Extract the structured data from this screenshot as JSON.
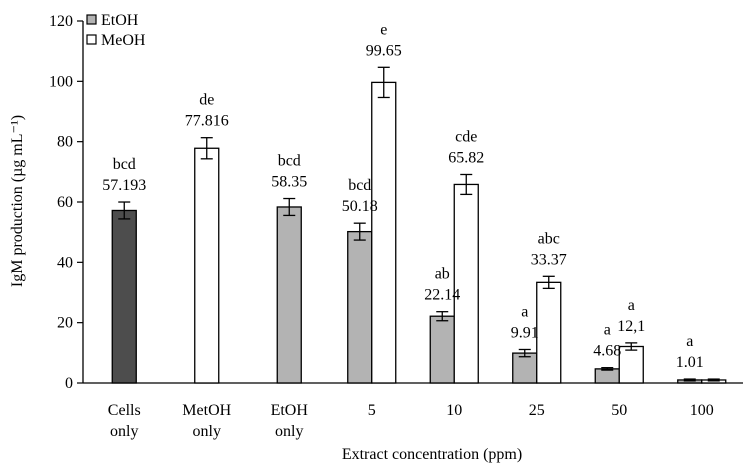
{
  "chart_data": {
    "type": "bar",
    "xlabel": "Extract concentration (ppm)",
    "ylabel": "IgM production (µg mL⁻¹)",
    "ylim": [
      0,
      120
    ],
    "yticks": [
      "0",
      "20",
      "40",
      "60",
      "80",
      "100",
      "120"
    ],
    "legend_position": "top-left",
    "legend": [
      {
        "name": "EtOH",
        "color": "#b3b3b3"
      },
      {
        "name": "MeOH",
        "color": "#ffffff"
      }
    ],
    "categories": [
      {
        "label": [
          "Cells",
          "only"
        ]
      },
      {
        "label": [
          "MetOH",
          "only"
        ]
      },
      {
        "label": [
          "EtOH",
          "only"
        ]
      },
      {
        "label": [
          "5"
        ]
      },
      {
        "label": [
          "10"
        ]
      },
      {
        "label": [
          "25"
        ]
      },
      {
        "label": [
          "50"
        ]
      },
      {
        "label": [
          "100"
        ]
      }
    ],
    "bars": [
      {
        "category": 0,
        "slot": "center",
        "fill": "#4d4d4d",
        "value": 57.193,
        "error": 2.8,
        "letters": "bcd",
        "value_label": "57.193"
      },
      {
        "category": 1,
        "slot": "center",
        "fill": "#ffffff",
        "value": 77.816,
        "error": 3.5,
        "letters": "de",
        "value_label": "77.816"
      },
      {
        "category": 2,
        "slot": "center",
        "fill": "#b3b3b3",
        "value": 58.35,
        "error": 2.8,
        "letters": "bcd",
        "value_label": "58.35"
      },
      {
        "category": 3,
        "slot": "left",
        "fill": "#b3b3b3",
        "value": 50.18,
        "error": 2.8,
        "letters": "bcd",
        "value_label": "50.18"
      },
      {
        "category": 3,
        "slot": "right",
        "fill": "#ffffff",
        "value": 99.65,
        "error": 5.0,
        "letters": "e",
        "value_label": "99.65"
      },
      {
        "category": 4,
        "slot": "left",
        "fill": "#b3b3b3",
        "value": 22.14,
        "error": 1.5,
        "letters": "ab",
        "value_label": "22.14"
      },
      {
        "category": 4,
        "slot": "right",
        "fill": "#ffffff",
        "value": 65.82,
        "error": 3.3,
        "letters": "cde",
        "value_label": "65.82"
      },
      {
        "category": 5,
        "slot": "left",
        "fill": "#b3b3b3",
        "value": 9.91,
        "error": 1.2,
        "letters": "a",
        "value_label": "9.91"
      },
      {
        "category": 5,
        "slot": "right",
        "fill": "#ffffff",
        "value": 33.37,
        "error": 2.0,
        "letters": "abc",
        "value_label": "33.37"
      },
      {
        "category": 6,
        "slot": "left",
        "fill": "#b3b3b3",
        "value": 4.68,
        "error": 0.4,
        "letters": "a",
        "value_label": "4.68"
      },
      {
        "category": 6,
        "slot": "right",
        "fill": "#ffffff",
        "value": 12.1,
        "error": 1.2,
        "letters": "a",
        "value_label": "12,1"
      },
      {
        "category": 7,
        "slot": "left",
        "fill": "#b3b3b3",
        "value": 1.01,
        "error": 0.3,
        "letters": "a",
        "value_label": "1.01"
      },
      {
        "category": 7,
        "slot": "right",
        "fill": "#ffffff",
        "value": 1.0,
        "error": 0.3,
        "letters": "",
        "value_label": ""
      }
    ]
  }
}
